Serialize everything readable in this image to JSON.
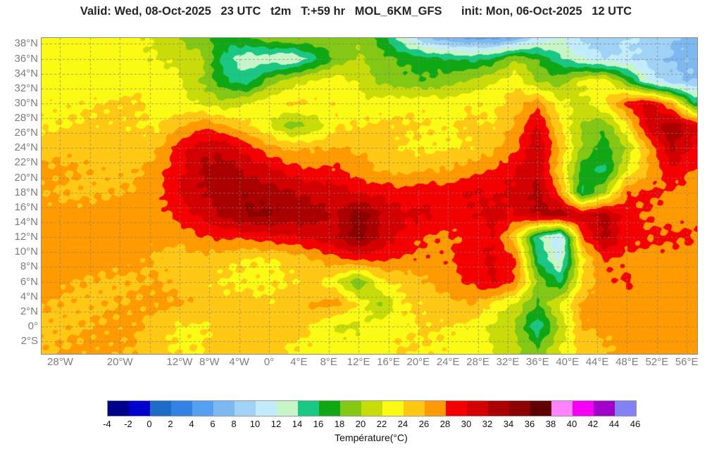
{
  "header": {
    "title": "Valid: Wed, 08-Oct-2025   23 UTC   t2m   T:+59 hr   MOL_6KM_GFS      init: Mon, 06-Oct-2025   12 UTC"
  },
  "chart_data": {
    "type": "heatmap",
    "variable": "t2m",
    "units": "°C",
    "model": "MOL_6KM_GFS",
    "valid_time": "Wed, 08-Oct-2025 23 UTC",
    "init_time": "Mon, 06-Oct-2025 12 UTC",
    "lead": "T:+59 hr",
    "extent": {
      "lon_min": -30.5,
      "lon_max": 57.4,
      "lat_min": -3.7,
      "lat_max": 38.8
    },
    "grid_step": {
      "lon": 4,
      "lat": 2
    },
    "x_ticks": [
      {
        "lon": -28,
        "label": "28°W"
      },
      {
        "lon": -20,
        "label": "20°W"
      },
      {
        "lon": -12,
        "label": "12°W"
      },
      {
        "lon": -8,
        "label": "8°W"
      },
      {
        "lon": -4,
        "label": "4°W"
      },
      {
        "lon": 0,
        "label": "0°"
      },
      {
        "lon": 4,
        "label": "4°E"
      },
      {
        "lon": 8,
        "label": "8°E"
      },
      {
        "lon": 12,
        "label": "12°E"
      },
      {
        "lon": 16,
        "label": "16°E"
      },
      {
        "lon": 20,
        "label": "20°E"
      },
      {
        "lon": 24,
        "label": "24°E"
      },
      {
        "lon": 28,
        "label": "28°E"
      },
      {
        "lon": 32,
        "label": "32°E"
      },
      {
        "lon": 36,
        "label": "36°E"
      },
      {
        "lon": 40,
        "label": "40°E"
      },
      {
        "lon": 44,
        "label": "44°E"
      },
      {
        "lon": 48,
        "label": "48°E"
      },
      {
        "lon": 52,
        "label": "52°E"
      },
      {
        "lon": 56,
        "label": "56°E"
      }
    ],
    "y_ticks": [
      {
        "lat": 38,
        "label": "38°N"
      },
      {
        "lat": 36,
        "label": "36°N"
      },
      {
        "lat": 34,
        "label": "34°N"
      },
      {
        "lat": 32,
        "label": "32°N"
      },
      {
        "lat": 30,
        "label": "30°N"
      },
      {
        "lat": 28,
        "label": "28°N"
      },
      {
        "lat": 26,
        "label": "26°N"
      },
      {
        "lat": 24,
        "label": "24°N"
      },
      {
        "lat": 22,
        "label": "22°N"
      },
      {
        "lat": 20,
        "label": "20°N"
      },
      {
        "lat": 18,
        "label": "18°N"
      },
      {
        "lat": 16,
        "label": "16°N"
      },
      {
        "lat": 14,
        "label": "14°N"
      },
      {
        "lat": 12,
        "label": "12°N"
      },
      {
        "lat": 10,
        "label": "10°N"
      },
      {
        "lat": 8,
        "label": "8°N"
      },
      {
        "lat": 6,
        "label": "6°N"
      },
      {
        "lat": 4,
        "label": "4°N"
      },
      {
        "lat": 2,
        "label": "2°N"
      },
      {
        "lat": 0,
        "label": "0°"
      },
      {
        "lat": -2,
        "label": "2°S"
      }
    ],
    "palette": {
      "levels": [
        -4,
        -2,
        0,
        2,
        4,
        6,
        8,
        10,
        12,
        14,
        16,
        18,
        20,
        22,
        24,
        26,
        28,
        30,
        32,
        34,
        36,
        38,
        40,
        42,
        44,
        46
      ],
      "colors": [
        "#00008B",
        "#0000CD",
        "#1E6BC8",
        "#3282E6",
        "#55A0F0",
        "#7DB8F0",
        "#A0D2F5",
        "#C3ECFA",
        "#C8F5C8",
        "#19C882",
        "#0FA814",
        "#82C814",
        "#C8DC0A",
        "#FAFA14",
        "#FFC814",
        "#FF9B00",
        "#F50000",
        "#D20000",
        "#AA0000",
        "#8B0000",
        "#5F0000",
        "#FF82FF",
        "#F500F5",
        "#A000C8",
        "#8282F5"
      ]
    },
    "colorbar": {
      "tick_labels": [
        "-4",
        "-2",
        "0",
        "2",
        "4",
        "6",
        "8",
        "10",
        "12",
        "14",
        "16",
        "18",
        "20",
        "22",
        "24",
        "26",
        "28",
        "30",
        "32",
        "34",
        "36",
        "38",
        "40",
        "42",
        "44",
        "46"
      ],
      "label": "Température(°C)"
    },
    "grid": {
      "lons": [
        -30,
        -27,
        -24,
        -21,
        -18,
        -15,
        -12,
        -9,
        -6,
        -3,
        0,
        3,
        6,
        9,
        12,
        15,
        18,
        21,
        24,
        27,
        30,
        33,
        36,
        39,
        42,
        45,
        48,
        51,
        54,
        57
      ],
      "lats": [
        39,
        36,
        33,
        30,
        27,
        24,
        21,
        18,
        15,
        12,
        9,
        6,
        3,
        0,
        -3
      ],
      "temps_c": [
        [
          23,
          23,
          23,
          23,
          23,
          22,
          20,
          18,
          17,
          18,
          20,
          21,
          20,
          19,
          19,
          17,
          12,
          8,
          6,
          5,
          4,
          5,
          10,
          12,
          10,
          8,
          10,
          9,
          8,
          7
        ],
        [
          23,
          23,
          23,
          23,
          23,
          22,
          21,
          20,
          15,
          13,
          13,
          12,
          15,
          18,
          20,
          19,
          18,
          17,
          16,
          15,
          16,
          20,
          18,
          15,
          12,
          10,
          10,
          9,
          8,
          8
        ],
        [
          23,
          23,
          23,
          23,
          23,
          23,
          22,
          20,
          17,
          15,
          19,
          21,
          22,
          23,
          22,
          20,
          19,
          18,
          19,
          20,
          22,
          24,
          20,
          19,
          22,
          23,
          18,
          12,
          9,
          8
        ],
        [
          24,
          24,
          24,
          24,
          24,
          23,
          23,
          22,
          21,
          22,
          23,
          24,
          24,
          24,
          23,
          23,
          23,
          23,
          23,
          24,
          24,
          25,
          27,
          22,
          21,
          24,
          29,
          31,
          26,
          16
        ],
        [
          24,
          24,
          24,
          24,
          24,
          24,
          26,
          28,
          26,
          24,
          22,
          19,
          21,
          24,
          24,
          24,
          24,
          24,
          24,
          25,
          24,
          26,
          30,
          24,
          20,
          19,
          24,
          31,
          33,
          30
        ],
        [
          25,
          25,
          25,
          25,
          25,
          26,
          29,
          31,
          31,
          29,
          27,
          26,
          26,
          26,
          25,
          25,
          24,
          24,
          24,
          24,
          25,
          27,
          32,
          26,
          20,
          17,
          20,
          26,
          32,
          30
        ],
        [
          26,
          26,
          26,
          26,
          26,
          27,
          29,
          32,
          33,
          32,
          31,
          29,
          28,
          28,
          27,
          26,
          26,
          26,
          26,
          27,
          28,
          30,
          32,
          25,
          17,
          15,
          22,
          26,
          30,
          28
        ],
        [
          26,
          26,
          26,
          26,
          26,
          27,
          30,
          32,
          34,
          34,
          33,
          32,
          31,
          31,
          30,
          30,
          29,
          29,
          29,
          30,
          30,
          31,
          33,
          27,
          15,
          20,
          28,
          29,
          28,
          27
        ],
        [
          27,
          27,
          27,
          27,
          27,
          27,
          29,
          31,
          33,
          34,
          34,
          33,
          33,
          32,
          36,
          32,
          30,
          30,
          29,
          30,
          31,
          30,
          32,
          33,
          31,
          33,
          29,
          28,
          27,
          27
        ],
        [
          27,
          27,
          27,
          27,
          27,
          27,
          27,
          28,
          28,
          28,
          29,
          30,
          31,
          32,
          35,
          31,
          29,
          28,
          28,
          29,
          30,
          24,
          14,
          10,
          28,
          33,
          29,
          28,
          28,
          28
        ],
        [
          27,
          27,
          27,
          27,
          27,
          26,
          25,
          25,
          24,
          24,
          24,
          25,
          26,
          27,
          28,
          28,
          28,
          28,
          28,
          29,
          30,
          28,
          16,
          12,
          24,
          28,
          27,
          27,
          27,
          27
        ],
        [
          27,
          26,
          26,
          26,
          26,
          26,
          25,
          24,
          24,
          24,
          24,
          24,
          24,
          22,
          18,
          24,
          25,
          26,
          27,
          28,
          30,
          28,
          20,
          16,
          24,
          27,
          28,
          27,
          27,
          27
        ],
        [
          26,
          26,
          26,
          26,
          26,
          26,
          26,
          26,
          25,
          25,
          24,
          25,
          26,
          27,
          24,
          20,
          24,
          24,
          25,
          26,
          24,
          22,
          18,
          22,
          26,
          27,
          27,
          27,
          27,
          27
        ],
        [
          26,
          26,
          26,
          26,
          26,
          25,
          24,
          24,
          25,
          25,
          25,
          25,
          24,
          22,
          22,
          23,
          23,
          24,
          24,
          24,
          22,
          20,
          14,
          20,
          26,
          27,
          27,
          27,
          27,
          27
        ],
        [
          26,
          26,
          26,
          26,
          26,
          25,
          24,
          24,
          25,
          25,
          25,
          24,
          24,
          23,
          23,
          23,
          24,
          24,
          24,
          23,
          22,
          20,
          18,
          22,
          25,
          26,
          27,
          27,
          27,
          27
        ]
      ]
    }
  }
}
